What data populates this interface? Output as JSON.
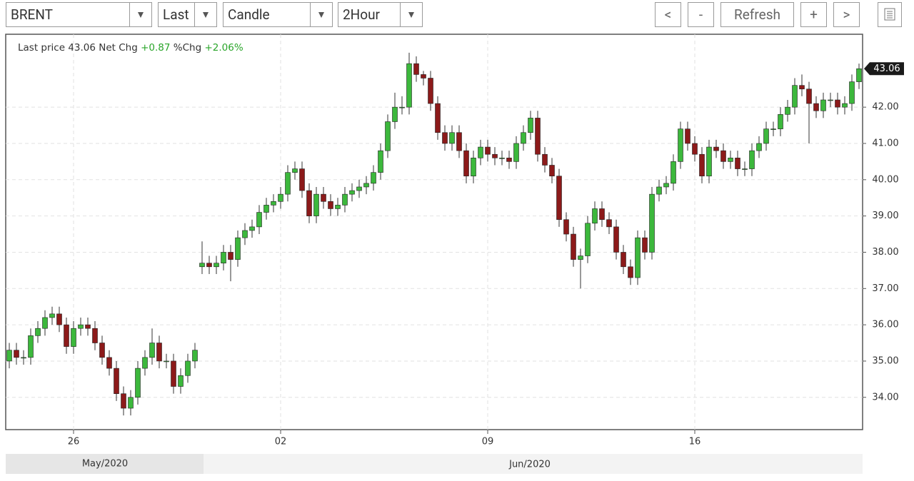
{
  "toolbar": {
    "symbol": "BRENT",
    "price_field": "Last",
    "chart_style": "Candle",
    "interval": "2Hour",
    "buttons": [
      "<",
      "-",
      "Refresh",
      "+",
      ">"
    ]
  },
  "header": {
    "last_price_label": "Last price",
    "last_price": "43.06",
    "net_chg_label": "Net Chg",
    "net_chg": "+0.87",
    "pct_chg_label": "%Chg",
    "pct_chg": "+2.06%"
  },
  "chart_data": {
    "type": "candlestick",
    "categories": [
      null,
      null,
      null,
      null,
      null,
      null,
      null,
      null,
      null,
      "26",
      null,
      null,
      null,
      null,
      null,
      null,
      null,
      null,
      null,
      null,
      null,
      null,
      null,
      null,
      null,
      null,
      null,
      null,
      null,
      null,
      null,
      null,
      null,
      null,
      null,
      null,
      null,
      null,
      "02",
      null,
      null,
      null,
      null,
      null,
      null,
      null,
      null,
      null,
      null,
      null,
      null,
      null,
      null,
      null,
      null,
      null,
      null,
      null,
      null,
      null,
      null,
      null,
      null,
      null,
      null,
      null,
      null,
      "09",
      null,
      null,
      null,
      null,
      null,
      null,
      null,
      null,
      null,
      null,
      null,
      null,
      null,
      null,
      null,
      null,
      null,
      null,
      null,
      null,
      null,
      null,
      null,
      null,
      null,
      null,
      null,
      null,
      "16",
      null,
      null,
      null,
      null,
      null,
      null,
      null,
      null,
      null,
      null,
      null,
      null,
      null,
      null,
      null,
      null,
      null,
      null,
      null,
      null,
      null,
      null,
      null
    ],
    "open": [
      35.0,
      35.3,
      35.1,
      35.1,
      35.7,
      35.9,
      36.2,
      36.3,
      36.0,
      35.4,
      35.9,
      36.0,
      35.9,
      35.5,
      35.1,
      34.8,
      34.1,
      33.7,
      34.0,
      34.8,
      35.1,
      35.5,
      35.0,
      35.0,
      34.3,
      34.6,
      35.0,
      37.6,
      37.7,
      37.6,
      37.7,
      38.0,
      37.8,
      38.4,
      38.6,
      38.7,
      39.1,
      39.3,
      39.4,
      39.6,
      40.2,
      40.3,
      39.7,
      39.0,
      39.6,
      39.4,
      39.2,
      39.3,
      39.6,
      39.7,
      39.8,
      39.9,
      40.2,
      40.8,
      41.6,
      42.0,
      42.0,
      43.2,
      42.9,
      42.8,
      42.1,
      41.3,
      41.0,
      41.3,
      40.8,
      40.1,
      40.6,
      40.9,
      40.7,
      40.6,
      40.6,
      40.5,
      41.0,
      41.3,
      41.7,
      40.7,
      40.4,
      40.1,
      38.9,
      38.5,
      37.8,
      37.9,
      38.8,
      39.2,
      38.9,
      38.7,
      38.0,
      37.6,
      37.3,
      38.4,
      38.0,
      39.6,
      39.8,
      39.9,
      40.5,
      41.4,
      41.0,
      40.7,
      40.1,
      40.9,
      40.8,
      40.5,
      40.6,
      40.3,
      40.3,
      40.8,
      41.0,
      41.4,
      41.4,
      41.8,
      42.0,
      42.6,
      42.5,
      42.1,
      41.9,
      42.2,
      42.2,
      42.0,
      42.1,
      42.7
    ],
    "high": [
      35.5,
      35.5,
      35.3,
      35.9,
      36.1,
      36.4,
      36.5,
      36.5,
      36.2,
      36.1,
      36.2,
      36.2,
      36.1,
      35.7,
      35.3,
      35.0,
      34.3,
      34.2,
      35.0,
      35.3,
      35.9,
      35.7,
      35.2,
      35.2,
      34.8,
      35.2,
      35.5,
      38.3,
      37.9,
      37.9,
      38.2,
      38.2,
      38.6,
      38.8,
      38.9,
      39.3,
      39.5,
      39.6,
      39.8,
      40.4,
      40.5,
      40.5,
      39.9,
      39.8,
      39.8,
      39.6,
      39.5,
      39.8,
      39.9,
      40.0,
      40.1,
      40.4,
      41.0,
      41.8,
      42.4,
      42.3,
      43.5,
      43.4,
      43.0,
      43.0,
      42.3,
      41.5,
      41.5,
      41.5,
      41.0,
      40.8,
      41.1,
      41.1,
      40.9,
      40.8,
      40.8,
      41.2,
      41.5,
      41.9,
      41.9,
      40.9,
      40.6,
      40.3,
      39.1,
      38.7,
      38.1,
      39.0,
      39.4,
      39.4,
      39.1,
      38.9,
      38.2,
      37.8,
      38.6,
      38.6,
      39.8,
      40.0,
      40.1,
      40.7,
      41.6,
      41.6,
      41.2,
      40.9,
      41.1,
      41.1,
      41.0,
      40.8,
      40.8,
      40.5,
      41.0,
      41.2,
      41.6,
      41.6,
      42.0,
      42.2,
      42.8,
      42.9,
      42.7,
      42.3,
      42.4,
      42.4,
      42.4,
      42.3,
      42.9,
      43.2
    ],
    "low": [
      34.8,
      34.9,
      34.9,
      34.9,
      35.5,
      35.7,
      36.0,
      35.8,
      35.2,
      35.2,
      35.7,
      35.7,
      35.3,
      34.9,
      34.6,
      33.9,
      33.5,
      33.5,
      33.8,
      34.6,
      34.9,
      34.8,
      34.8,
      34.1,
      34.1,
      34.4,
      34.8,
      37.4,
      37.4,
      37.4,
      37.5,
      37.2,
      37.6,
      38.2,
      38.4,
      38.5,
      38.9,
      39.1,
      39.2,
      39.4,
      40.0,
      39.5,
      38.8,
      38.8,
      39.2,
      39.0,
      39.0,
      39.1,
      39.4,
      39.5,
      39.6,
      39.7,
      40.0,
      40.6,
      41.4,
      41.8,
      41.8,
      42.7,
      42.6,
      41.9,
      41.1,
      40.8,
      40.8,
      40.6,
      39.9,
      39.9,
      40.4,
      40.5,
      40.4,
      40.4,
      40.3,
      40.3,
      40.8,
      41.1,
      40.5,
      40.2,
      39.9,
      38.7,
      38.3,
      37.6,
      37.0,
      37.7,
      38.6,
      38.7,
      38.5,
      37.8,
      37.4,
      37.1,
      37.1,
      37.8,
      37.8,
      39.4,
      39.6,
      39.7,
      40.3,
      40.8,
      40.5,
      39.9,
      39.9,
      40.6,
      40.3,
      40.3,
      40.1,
      40.1,
      40.1,
      40.6,
      40.8,
      41.2,
      41.2,
      41.6,
      41.8,
      42.3,
      41.0,
      41.7,
      41.7,
      42.0,
      41.8,
      41.8,
      41.9,
      42.5
    ],
    "close": [
      35.3,
      35.1,
      35.1,
      35.7,
      35.9,
      36.2,
      36.3,
      36.0,
      35.4,
      35.9,
      36.0,
      35.9,
      35.5,
      35.1,
      34.8,
      34.1,
      33.7,
      34.0,
      34.8,
      35.1,
      35.5,
      35.0,
      35.0,
      34.3,
      34.6,
      35.0,
      35.3,
      37.7,
      37.6,
      37.7,
      38.0,
      37.8,
      38.4,
      38.6,
      38.7,
      39.1,
      39.3,
      39.4,
      39.6,
      40.2,
      40.3,
      39.7,
      39.0,
      39.6,
      39.4,
      39.2,
      39.3,
      39.6,
      39.7,
      39.8,
      39.9,
      40.2,
      40.8,
      41.6,
      42.0,
      42.0,
      43.2,
      42.9,
      42.8,
      42.1,
      41.3,
      41.0,
      41.3,
      40.8,
      40.1,
      40.6,
      40.9,
      40.7,
      40.6,
      40.6,
      40.5,
      41.0,
      41.3,
      41.7,
      40.7,
      40.4,
      40.1,
      38.9,
      38.5,
      37.8,
      37.9,
      38.8,
      39.2,
      38.9,
      38.7,
      38.0,
      37.6,
      37.3,
      38.4,
      38.0,
      39.6,
      39.8,
      39.9,
      40.5,
      41.4,
      41.0,
      40.7,
      40.1,
      40.9,
      40.8,
      40.5,
      40.6,
      40.3,
      40.3,
      40.8,
      41.0,
      41.4,
      41.4,
      41.8,
      42.0,
      42.6,
      42.5,
      42.1,
      41.9,
      42.2,
      42.2,
      42.0,
      42.1,
      42.7,
      43.06
    ],
    "up_color": "#3cb83c",
    "down_color": "#8c1a1a",
    "ylim": [
      33.11,
      44.01
    ],
    "yticks": [
      {
        "value": 34,
        "label": "34.00"
      },
      {
        "value": 35,
        "label": "35.00"
      },
      {
        "value": 36,
        "label": "36.00"
      },
      {
        "value": 37,
        "label": "37.00"
      },
      {
        "value": 38,
        "label": "38.00"
      },
      {
        "value": 39,
        "label": "39.00"
      },
      {
        "value": 40,
        "label": "40.00"
      },
      {
        "value": 41,
        "label": "41.00"
      },
      {
        "value": 42,
        "label": "42.00"
      }
    ],
    "last_price": {
      "value": 43.06,
      "label": "43.06"
    },
    "grid": true,
    "periods": [
      "May/2020",
      "Jun/2020"
    ]
  }
}
